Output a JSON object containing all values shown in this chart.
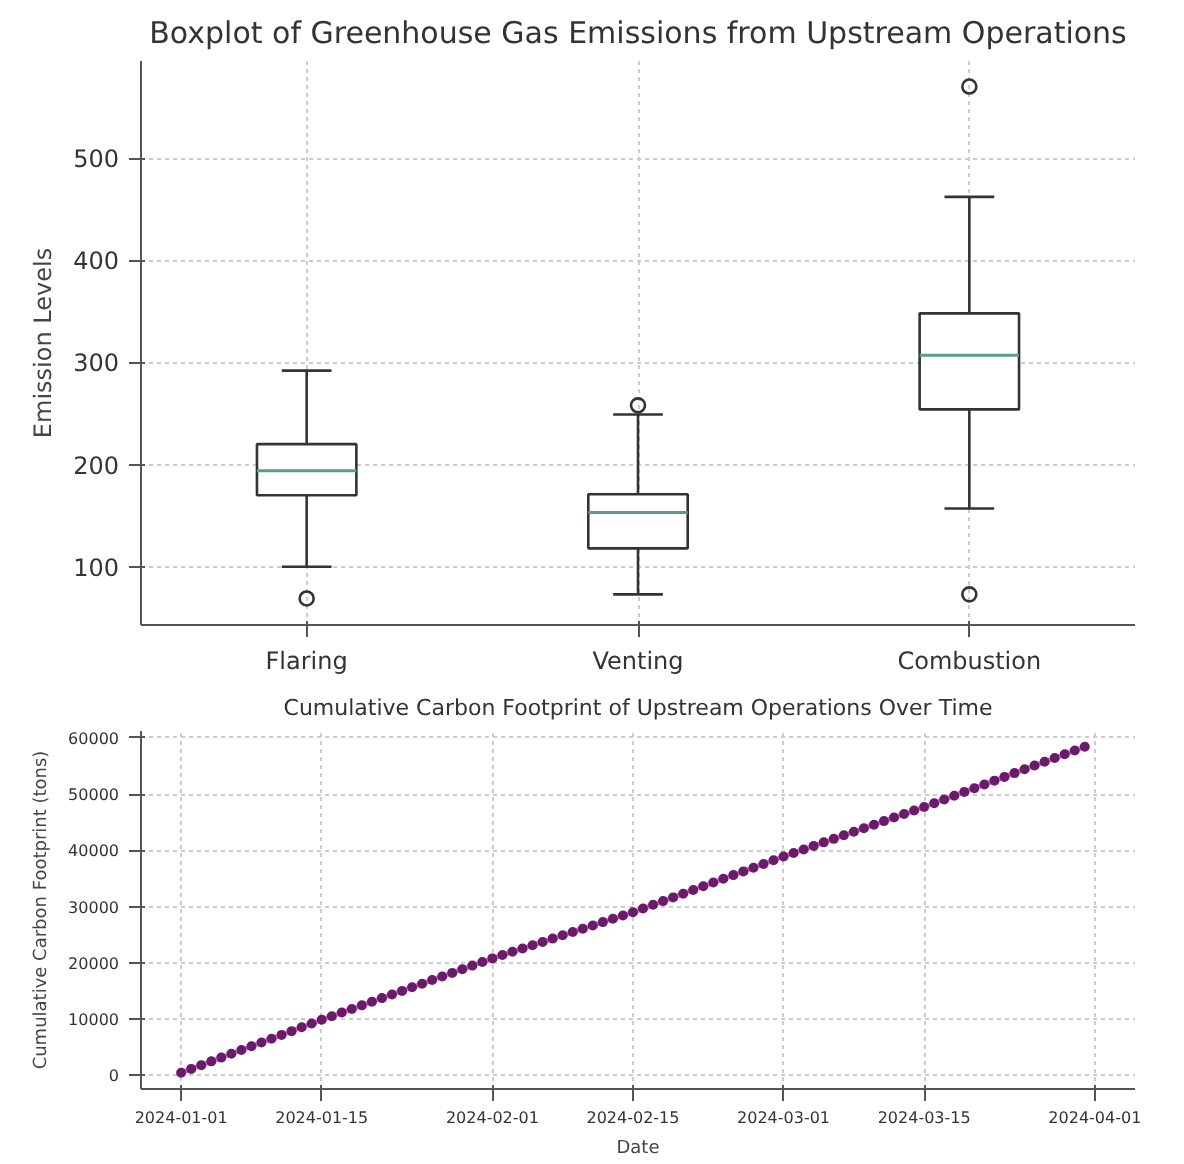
{
  "chart_data": [
    {
      "type": "box",
      "title": "Boxplot of Greenhouse Gas Emissions from Upstream Operations",
      "ylabel": "Emission Levels",
      "categories": [
        "Flaring",
        "Venting",
        "Combustion"
      ],
      "boxes": [
        {
          "low": 100,
          "q1": 170,
          "median": 194,
          "q3": 220,
          "high": 292,
          "outliers": [
            69
          ]
        },
        {
          "low": 73,
          "q1": 118,
          "median": 153,
          "q3": 171,
          "high": 249,
          "outliers": [
            258
          ]
        },
        {
          "low": 157,
          "q1": 254,
          "median": 307,
          "q3": 348,
          "high": 462,
          "outliers": [
            570,
            73
          ]
        }
      ],
      "ylim": [
        43,
        595
      ],
      "yticks": [
        100,
        200,
        300,
        400,
        500
      ],
      "grid": true
    },
    {
      "type": "line",
      "title": "Cumulative Carbon Footprint of Upstream Operations Over Time",
      "xlabel": "Date",
      "ylabel": "Cumulative Carbon Footprint (tons)",
      "x": [
        "2024-01-01",
        "2024-01-02",
        "2024-01-03",
        "2024-01-04",
        "2024-01-05",
        "2024-01-06",
        "2024-01-07",
        "2024-01-08",
        "2024-01-09",
        "2024-01-10",
        "2024-01-11",
        "2024-01-12",
        "2024-01-13",
        "2024-01-14",
        "2024-01-15",
        "2024-01-16",
        "2024-01-17",
        "2024-01-18",
        "2024-01-19",
        "2024-01-20",
        "2024-01-21",
        "2024-01-22",
        "2024-01-23",
        "2024-01-24",
        "2024-01-25",
        "2024-01-26",
        "2024-01-27",
        "2024-01-28",
        "2024-01-29",
        "2024-01-30",
        "2024-01-31",
        "2024-02-01",
        "2024-02-02",
        "2024-02-03",
        "2024-02-04",
        "2024-02-05",
        "2024-02-06",
        "2024-02-07",
        "2024-02-08",
        "2024-02-09",
        "2024-02-10",
        "2024-02-11",
        "2024-02-12",
        "2024-02-13",
        "2024-02-14",
        "2024-02-15",
        "2024-02-16",
        "2024-02-17",
        "2024-02-18",
        "2024-02-19",
        "2024-02-20",
        "2024-02-21",
        "2024-02-22",
        "2024-02-23",
        "2024-02-24",
        "2024-02-25",
        "2024-02-26",
        "2024-02-27",
        "2024-02-28",
        "2024-02-29",
        "2024-03-01",
        "2024-03-02",
        "2024-03-03",
        "2024-03-04",
        "2024-03-05",
        "2024-03-06",
        "2024-03-07",
        "2024-03-08",
        "2024-03-09",
        "2024-03-10",
        "2024-03-11",
        "2024-03-12",
        "2024-03-13",
        "2024-03-14",
        "2024-03-15",
        "2024-03-16",
        "2024-03-17",
        "2024-03-18",
        "2024-03-19",
        "2024-03-20",
        "2024-03-21",
        "2024-03-22",
        "2024-03-23",
        "2024-03-24",
        "2024-03-25",
        "2024-03-26",
        "2024-03-27",
        "2024-03-28",
        "2024-03-29",
        "2024-03-30",
        "2024-03-31"
      ],
      "series": [
        {
          "color": "#6a1b6a",
          "values": [
            500,
            1170,
            1840,
            2510,
            3180,
            3860,
            4530,
            5200,
            5870,
            6540,
            7210,
            7880,
            8560,
            9230,
            9900,
            10540,
            11180,
            11820,
            12460,
            13110,
            13750,
            14390,
            15030,
            15670,
            16310,
            16950,
            17590,
            18230,
            18880,
            19520,
            20160,
            20800,
            21390,
            21970,
            22560,
            23140,
            23730,
            24320,
            24900,
            25490,
            26070,
            26660,
            27250,
            27830,
            28420,
            29000,
            29660,
            30320,
            30980,
            31640,
            32300,
            32960,
            33620,
            34280,
            34940,
            35600,
            36260,
            36920,
            37580,
            38240,
            38900,
            39530,
            40160,
            40790,
            41420,
            42040,
            42670,
            43300,
            43930,
            44560,
            45190,
            45820,
            46440,
            47070,
            47700,
            48370,
            49040,
            49710,
            50380,
            51040,
            51710,
            52380,
            53050,
            53720,
            54390,
            55060,
            55730,
            56390,
            57060,
            57730,
            58400
          ]
        }
      ],
      "xlim": [
        "2023-12-28",
        "2024-04-05"
      ],
      "xticks": [
        "2024-01-01",
        "2024-01-15",
        "2024-02-01",
        "2024-02-15",
        "2024-03-01",
        "2024-03-15",
        "2024-04-01"
      ],
      "ylim": [
        -2400,
        61200
      ],
      "yticks": [
        0,
        10000,
        20000,
        30000,
        40000,
        50000,
        60000
      ],
      "grid": true,
      "marker": "circle",
      "line_style": "solid"
    }
  ]
}
